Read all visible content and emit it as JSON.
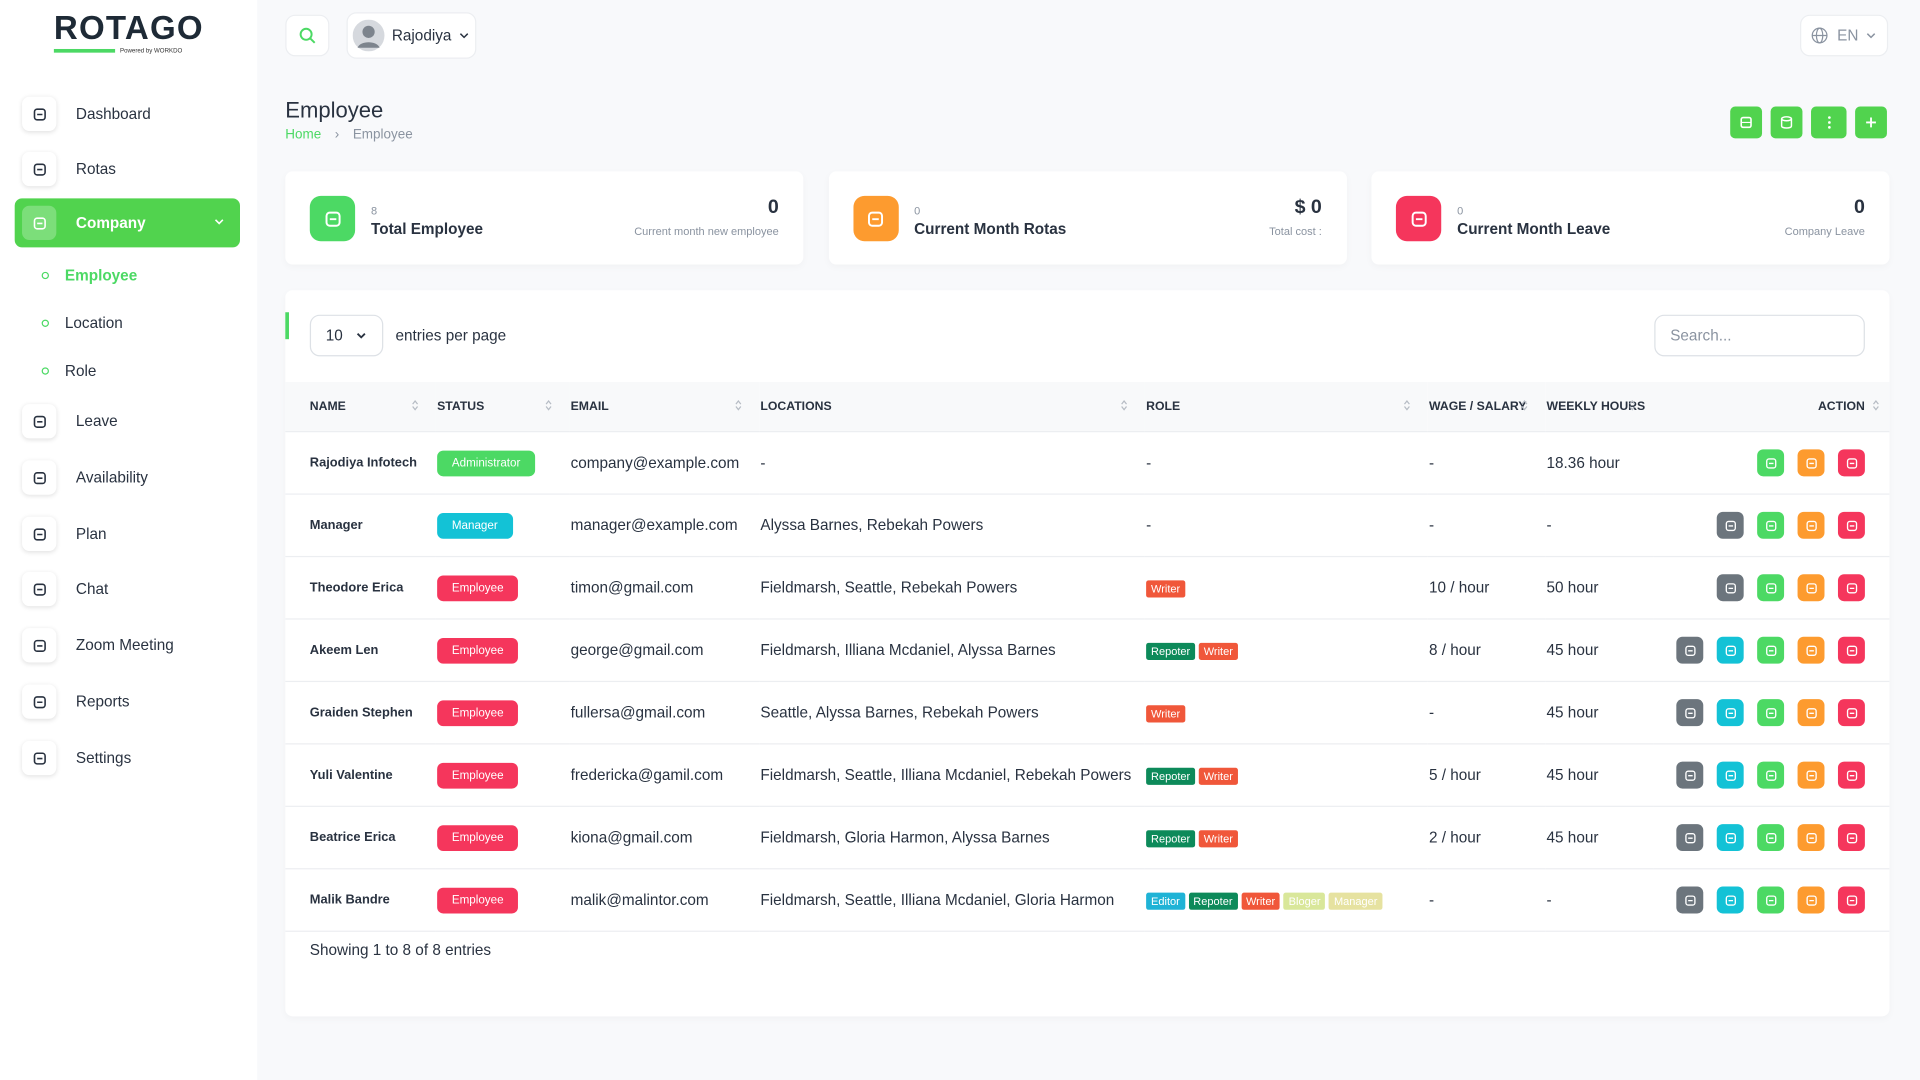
{
  "brand": {
    "name": "ROTAGO",
    "tagline": "Powered by WORKDO"
  },
  "header": {
    "user": "Rajodiya",
    "language": "EN"
  },
  "sidebar": {
    "items": [
      {
        "label": "Dashboard"
      },
      {
        "label": "Rotas"
      },
      {
        "label": "Company",
        "active": true,
        "children": [
          {
            "label": "Employee",
            "active": true
          },
          {
            "label": "Location"
          },
          {
            "label": "Role"
          }
        ]
      },
      {
        "label": "Leave"
      },
      {
        "label": "Availability"
      },
      {
        "label": "Plan"
      },
      {
        "label": "Chat"
      },
      {
        "label": "Zoom Meeting"
      },
      {
        "label": "Reports"
      },
      {
        "label": "Settings"
      }
    ]
  },
  "page": {
    "title": "Employee",
    "breadcrumb": [
      "Home",
      "Employee"
    ]
  },
  "stats": [
    {
      "count": 8,
      "label": "Total Employee",
      "value": 0,
      "caption": "Current month new employee",
      "color": "#4cd964"
    },
    {
      "count": 0,
      "label": "Current Month Rotas",
      "value": "$ 0",
      "caption": "Total cost :",
      "color": "#fd9b2f"
    },
    {
      "count": 0,
      "label": "Current Month Leave",
      "value": 0,
      "caption": "Company Leave",
      "color": "#f5365c"
    }
  ],
  "table": {
    "page_size": 10,
    "page_size_label": "entries per page",
    "search_placeholder": "Search...",
    "columns": [
      "NAME",
      "STATUS",
      "EMAIL",
      "LOCATIONS",
      "ROLE",
      "WAGE / SALARY",
      "WEEKLY HOURS",
      "ACTION"
    ],
    "rows": [
      {
        "name": "Rajodiya Infotech",
        "status": {
          "label": "Administrator",
          "color": "#4cd964"
        },
        "email": "company@example.com",
        "locations": "-",
        "roles": "-",
        "wage": "-",
        "hours": "18.36 hour"
      },
      {
        "name": "Manager",
        "status": {
          "label": "Manager",
          "color": "#13c2d6"
        },
        "email": "manager@example.com",
        "locations": "Alyssa Barnes, Rebekah Powers",
        "roles": "-",
        "wage": "-",
        "hours": "-"
      },
      {
        "name": "Theodore Erica",
        "status": {
          "label": "Employee",
          "color": "#f5365c"
        },
        "email": "timon@gmail.com",
        "locations": "Fieldmarsh, Seattle, Rebekah Powers",
        "roles": [
          {
            "name": "Writer",
            "color": "#f0573a"
          }
        ],
        "wage": "10 / hour",
        "hours": "50 hour"
      },
      {
        "name": "Akeem Len",
        "status": {
          "label": "Employee",
          "color": "#f5365c"
        },
        "email": "george@gmail.com",
        "locations": "Fieldmarsh, Illiana Mcdaniel, Alyssa Barnes",
        "roles": [
          {
            "name": "Repoter",
            "color": "#0d8a5a"
          },
          {
            "name": "Writer",
            "color": "#f0573a"
          }
        ],
        "wage": "8 / hour",
        "hours": "45 hour"
      },
      {
        "name": "Graiden Stephen",
        "status": {
          "label": "Employee",
          "color": "#f5365c"
        },
        "email": "fullersa@gmail.com",
        "locations": "Seattle, Alyssa Barnes, Rebekah Powers",
        "roles": [
          {
            "name": "Writer",
            "color": "#f0573a"
          }
        ],
        "wage": "-",
        "hours": "45 hour"
      },
      {
        "name": "Yuli Valentine",
        "status": {
          "label": "Employee",
          "color": "#f5365c"
        },
        "email": "fredericka@gamil.com",
        "locations": "Fieldmarsh, Seattle, Illiana Mcdaniel, Rebekah Powers",
        "roles": [
          {
            "name": "Repoter",
            "color": "#0d8a5a"
          },
          {
            "name": "Writer",
            "color": "#f0573a"
          }
        ],
        "wage": "5 / hour",
        "hours": "45 hour"
      },
      {
        "name": "Beatrice Erica",
        "status": {
          "label": "Employee",
          "color": "#f5365c"
        },
        "email": "kiona@gmail.com",
        "locations": "Fieldmarsh, Gloria Harmon, Alyssa Barnes",
        "roles": [
          {
            "name": "Repoter",
            "color": "#0d8a5a"
          },
          {
            "name": "Writer",
            "color": "#f0573a"
          }
        ],
        "wage": "2 / hour",
        "hours": "45 hour"
      },
      {
        "name": "Malik Bandre",
        "status": {
          "label": "Employee",
          "color": "#f5365c"
        },
        "email": "malik@malintor.com",
        "locations": "Fieldmarsh, Seattle, Illiana Mcdaniel, Gloria Harmon",
        "roles": [
          {
            "name": "Editor",
            "color": "#1fb3d6"
          },
          {
            "name": "Repoter",
            "color": "#0d8a5a"
          },
          {
            "name": "Writer",
            "color": "#f0573a"
          },
          {
            "name": "Bloger",
            "color": "#d9e79a"
          },
          {
            "name": "Manager",
            "color": "#e6e2a0"
          }
        ],
        "wage": "-",
        "hours": "-"
      }
    ],
    "footer": "Showing 1 to 8 of 8 entries"
  }
}
